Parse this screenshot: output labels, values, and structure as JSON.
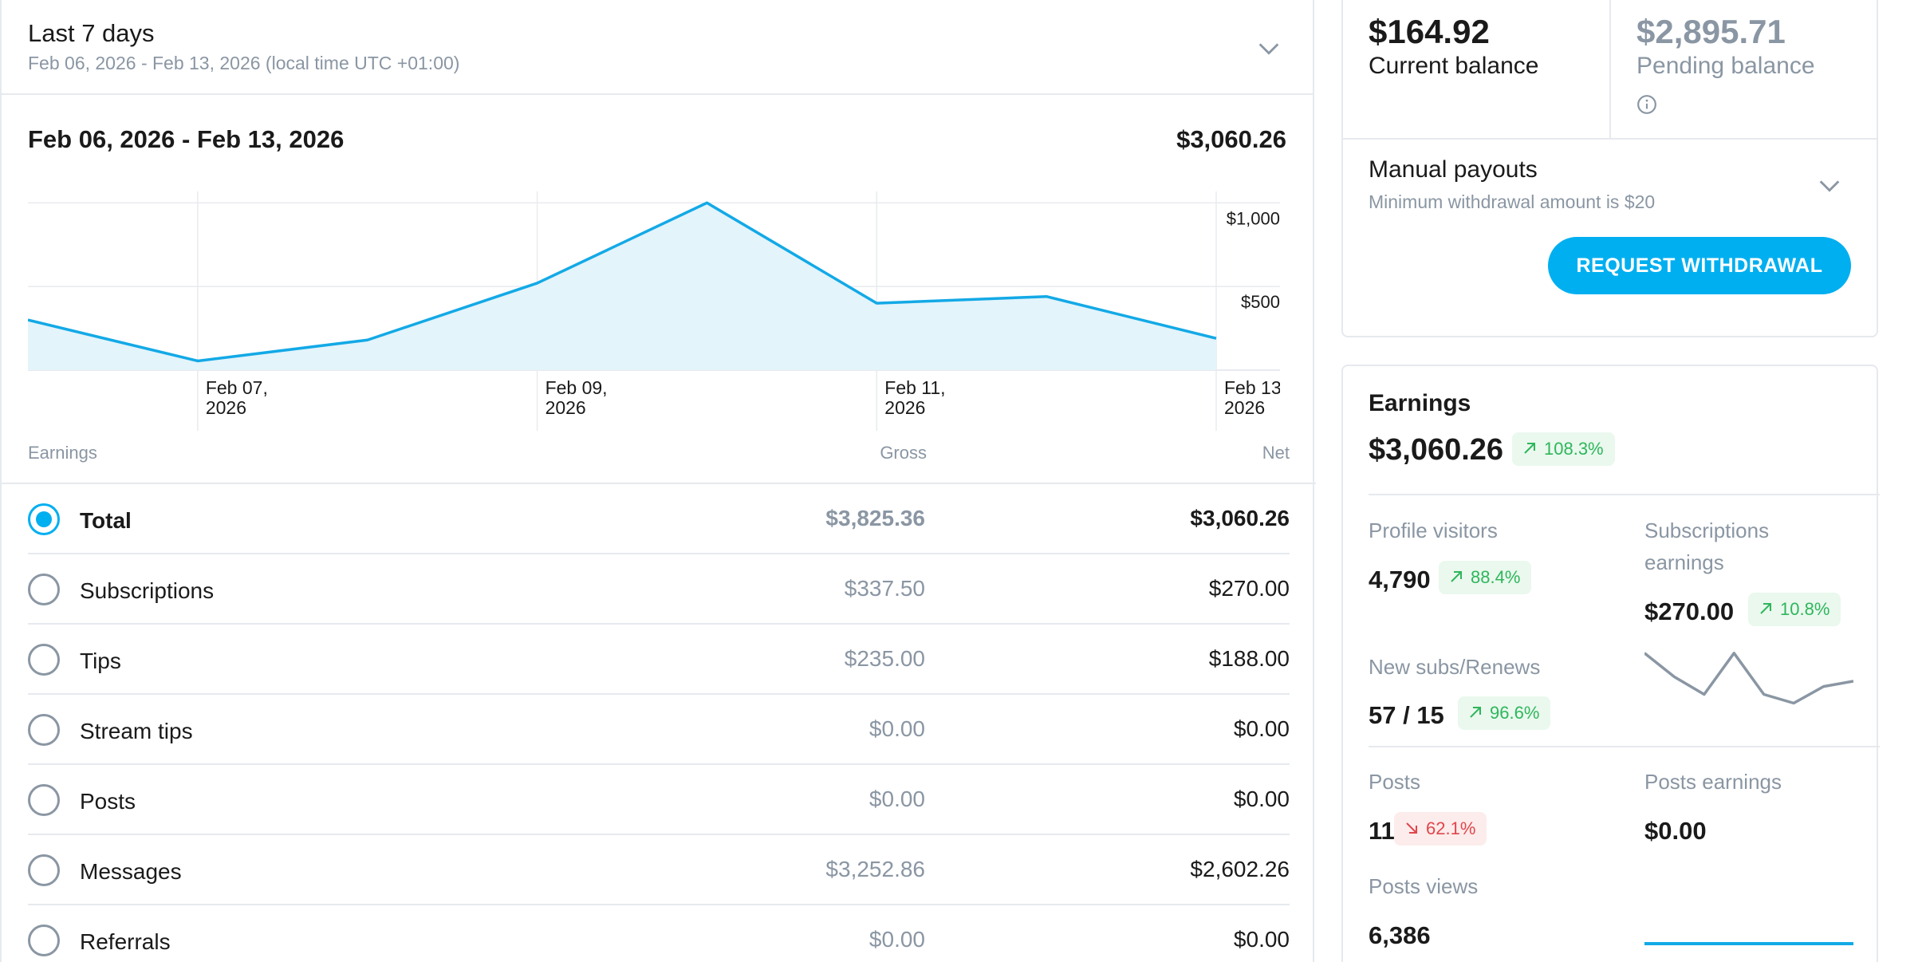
{
  "range": {
    "title": "Last 7 days",
    "subtitle": "Feb 06, 2026 - Feb 13, 2026 (local time UTC +01:00)"
  },
  "period": {
    "title": "Feb 06, 2026 - Feb 13, 2026",
    "total": "$3,060.26"
  },
  "chart_data": {
    "type": "area",
    "x": [
      "Feb 06, 2026",
      "Feb 07, 2026",
      "Feb 08, 2026",
      "Feb 09, 2026",
      "Feb 10, 2026",
      "Feb 11, 2026",
      "Feb 12, 2026",
      "Feb 13, 2026"
    ],
    "values": [
      300,
      55,
      180,
      520,
      1000,
      400,
      440,
      190
    ],
    "x_tick_labels": [
      [
        "Feb 07,",
        "2026"
      ],
      [
        "Feb 09,",
        "2026"
      ],
      [
        "Feb 11,",
        "2026"
      ],
      [
        "Feb 13,",
        "2026"
      ]
    ],
    "y_tick_labels": [
      "$1,000",
      "$500"
    ],
    "y_ticks": [
      1000,
      500
    ],
    "ylim": [
      0,
      1000
    ],
    "grid": true,
    "colors": {
      "line": "#13a9e6",
      "fill": "#e3f4fb"
    }
  },
  "table": {
    "headers": {
      "name": "Earnings",
      "gross": "Gross",
      "net": "Net"
    },
    "rows": [
      {
        "name": "Total",
        "gross": "$3,825.36",
        "net": "$3,060.26",
        "selected": true
      },
      {
        "name": "Subscriptions",
        "gross": "$337.50",
        "net": "$270.00",
        "selected": false
      },
      {
        "name": "Tips",
        "gross": "$235.00",
        "net": "$188.00",
        "selected": false
      },
      {
        "name": "Stream tips",
        "gross": "$0.00",
        "net": "$0.00",
        "selected": false
      },
      {
        "name": "Posts",
        "gross": "$0.00",
        "net": "$0.00",
        "selected": false
      },
      {
        "name": "Messages",
        "gross": "$3,252.86",
        "net": "$2,602.26",
        "selected": false
      },
      {
        "name": "Referrals",
        "gross": "$0.00",
        "net": "$0.00",
        "selected": false
      }
    ]
  },
  "balance": {
    "current_amount": "$164.92",
    "current_label": "Current balance",
    "pending_amount": "$2,895.71",
    "pending_label": "Pending balance",
    "info_icon": "info-icon",
    "payout_title": "Manual payouts",
    "payout_sub": "Minimum withdrawal amount is $20",
    "withdraw_label": "REQUEST WITHDRAWAL"
  },
  "earnings": {
    "title": "Earnings",
    "amount": "$3,060.26",
    "change": "108.3%",
    "profile_visitors_label": "Profile visitors",
    "profile_visitors_value": "4,790",
    "profile_visitors_change": "88.4%",
    "subs_earnings_label_1": "Subscriptions",
    "subs_earnings_label_2": "earnings",
    "subs_earnings_value": "$270.00",
    "subs_earnings_change": "10.8%",
    "new_subs_label": "New subs/Renews",
    "new_subs_value": "57 / 15",
    "new_subs_change": "96.6%",
    "sparkline": [
      0.82,
      0.55,
      0.35,
      0.82,
      0.35,
      0.25,
      0.44,
      0.5
    ],
    "posts_label": "Posts",
    "posts_value": "11",
    "posts_change": "62.1%",
    "posts_earnings_label": "Posts earnings",
    "posts_earnings_value": "$0.00",
    "posts_views_label": "Posts views",
    "posts_views_value": "6,386"
  },
  "colors": {
    "accent": "#00aff0",
    "positive": "#2fb65b",
    "negative": "#e0464b",
    "muted_text": "#8a96a3"
  }
}
